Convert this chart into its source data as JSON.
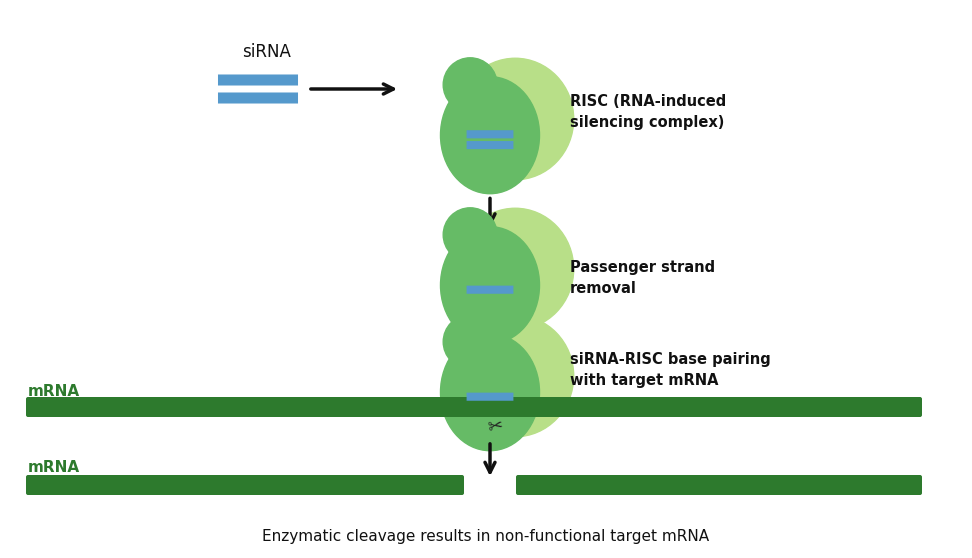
{
  "bg_color": "#ffffff",
  "green_light": "#b8df88",
  "green_body": "#66bb66",
  "blue_strand": "#5599cc",
  "dark_green_mrna": "#2d7a2d",
  "arrow_color": "#111111",
  "text_color": "#111111",
  "mrna_label_color": "#2d7a2d",
  "siRNA_label": "siRNA",
  "label1": "RISC (RNA-induced\nsilencing complex)",
  "label2": "Passenger strand\nremoval",
  "label3": "siRNA-RISC base pairing\nwith target mRNA",
  "label4": "Enzymatic cleavage results in non-functional target mRNA",
  "mrna_label": "mRNA",
  "fig_w": 9.72,
  "fig_h": 5.58,
  "dpi": 100
}
